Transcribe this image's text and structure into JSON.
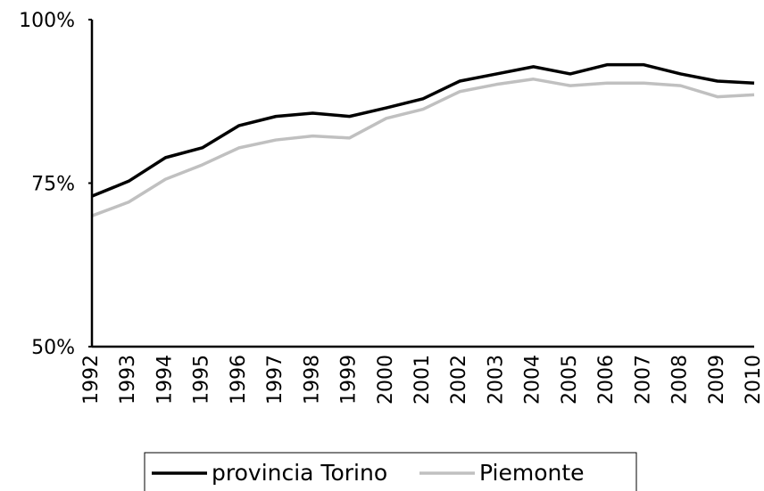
{
  "chart_data": {
    "type": "line",
    "categories": [
      "1992",
      "1993",
      "1994",
      "1995",
      "1996",
      "1997",
      "1998",
      "1999",
      "2000",
      "2001",
      "2002",
      "2003",
      "2004",
      "2005",
      "2006",
      "2007",
      "2008",
      "2009",
      "2010"
    ],
    "series": [
      {
        "name": "provincia Torino",
        "color": "#000000",
        "values": [
          73.0,
          75.3,
          78.9,
          80.4,
          83.8,
          85.2,
          85.7,
          85.2,
          86.5,
          87.9,
          90.6,
          91.7,
          92.8,
          91.7,
          93.1,
          93.1,
          91.7,
          90.6,
          90.3
        ]
      },
      {
        "name": "Piemonte",
        "color": "#c0c0c0",
        "values": [
          70.0,
          72.1,
          75.6,
          77.8,
          80.4,
          81.6,
          82.2,
          81.9,
          84.9,
          86.3,
          89.0,
          90.1,
          90.9,
          89.9,
          90.3,
          90.3,
          89.9,
          88.2,
          88.5
        ]
      }
    ],
    "ylim": [
      50,
      100
    ],
    "yticks": [
      {
        "value": 50,
        "label": "50%"
      },
      {
        "value": 75,
        "label": "75%"
      },
      {
        "value": 100,
        "label": "100%"
      }
    ],
    "grid": false,
    "legend": "bottom"
  }
}
